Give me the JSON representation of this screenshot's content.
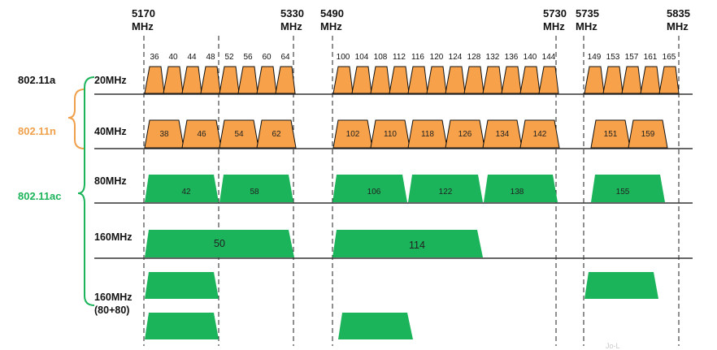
{
  "colors": {
    "orange": "#F7A24A",
    "green": "#1BB45A",
    "std_n": "#F0A04B",
    "std_ac": "#1BB45A",
    "axis": "#333333"
  },
  "freq_markers": [
    {
      "mhz": "5170",
      "unit": "MHz"
    },
    {
      "mhz": "5330",
      "unit": "MHz"
    },
    {
      "mhz": "5490",
      "unit": "MHz"
    },
    {
      "mhz": "5730",
      "unit": "MHz"
    },
    {
      "mhz": "5735",
      "unit": "MHz"
    },
    {
      "mhz": "5835",
      "unit": "MHz"
    }
  ],
  "standards": {
    "a": "802.11a",
    "n": "802.11n",
    "ac": "802.11ac"
  },
  "rows": {
    "w20": "20MHz",
    "w40": "40MHz",
    "w80": "80MHz",
    "w160": "160MHz",
    "w8080": "160MHz",
    "w8080_sub": "(80+80)"
  },
  "channels_20": [
    "36",
    "40",
    "44",
    "48",
    "52",
    "56",
    "60",
    "64",
    "100",
    "104",
    "108",
    "112",
    "116",
    "120",
    "124",
    "128",
    "132",
    "136",
    "140",
    "144",
    "149",
    "153",
    "157",
    "161",
    "165"
  ],
  "channels_40": [
    "38",
    "46",
    "54",
    "62",
    "102",
    "110",
    "118",
    "126",
    "134",
    "142",
    "151",
    "159"
  ],
  "channels_80": [
    "42",
    "58",
    "106",
    "122",
    "138",
    "155"
  ],
  "channels_160": [
    "50",
    "114"
  ],
  "watermark": "Jo-L"
}
